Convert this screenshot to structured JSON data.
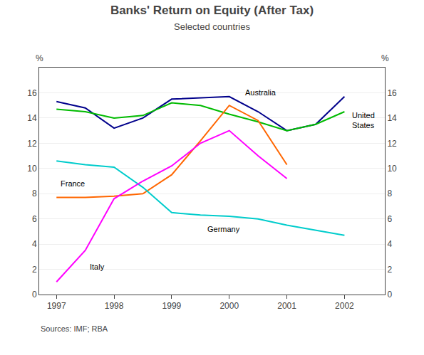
{
  "chart_data": {
    "type": "line",
    "title": "Banks' Return on Equity (After Tax)",
    "subtitle": "Selected countries",
    "source": "Sources: IMF; RBA",
    "ylabel": "%",
    "y2label": "%",
    "xlim": [
      1996.7,
      2002.7
    ],
    "xticks": [
      1997,
      1998,
      1999,
      2000,
      2001,
      2002
    ],
    "ylim": [
      0,
      18
    ],
    "yticks": [
      0,
      2,
      4,
      6,
      8,
      10,
      12,
      14,
      16
    ],
    "y2lim": [
      0,
      18
    ],
    "y2ticks": [
      0,
      2,
      4,
      6,
      8,
      10,
      12,
      14,
      16
    ],
    "grid": "y",
    "series": [
      {
        "name": "Australia",
        "color": "#00008B",
        "x": [
          1997,
          1997.5,
          1998,
          1998.5,
          1999,
          1999.5,
          2000,
          2000.5,
          2001,
          2001.5,
          2002
        ],
        "values": [
          15.3,
          14.8,
          13.2,
          14.0,
          15.5,
          15.6,
          15.7,
          14.5,
          13.0,
          13.5,
          15.7
        ]
      },
      {
        "name": "United States",
        "color": "#00BB00",
        "x": [
          1997,
          1997.5,
          1998,
          1998.5,
          1999,
          1999.5,
          2000,
          2000.5,
          2001,
          2001.5,
          2002
        ],
        "values": [
          14.7,
          14.5,
          14.0,
          14.2,
          15.2,
          15.0,
          14.3,
          13.7,
          13.0,
          13.5,
          14.5
        ]
      },
      {
        "name": "France",
        "color": "#FF6600",
        "x": [
          1997,
          1997.5,
          1998,
          1998.5,
          1999,
          1999.5,
          2000,
          2000.5,
          2001
        ],
        "values": [
          7.7,
          7.7,
          7.8,
          8.0,
          9.5,
          12.2,
          15.0,
          13.8,
          10.3
        ]
      },
      {
        "name": "Germany",
        "color": "#00CCCC",
        "x": [
          1997,
          1997.5,
          1998,
          1998.5,
          1999,
          1999.5,
          2000,
          2000.5,
          2001,
          2002
        ],
        "values": [
          10.6,
          10.3,
          10.1,
          8.5,
          6.5,
          6.3,
          6.2,
          6.0,
          5.5,
          4.7
        ]
      },
      {
        "name": "Italy",
        "color": "#FF00FF",
        "x": [
          1997,
          1997.5,
          1998,
          1998.5,
          1999,
          1999.5,
          2000,
          2000.5,
          2001
        ],
        "values": [
          1.0,
          3.5,
          7.6,
          9.0,
          10.2,
          12.0,
          13.0,
          11.0,
          9.2
        ]
      }
    ],
    "annotations": [
      {
        "text": "Australia",
        "x": 2000.25,
        "y": 16.0
      },
      {
        "text": "United\nStates",
        "x": 2002.1,
        "y": 13.8
      },
      {
        "text": "France",
        "x": 1997.05,
        "y": 8.8
      },
      {
        "text": "Germany",
        "x": 1999.6,
        "y": 5.2
      },
      {
        "text": "Italy",
        "x": 1997.55,
        "y": 2.2
      }
    ]
  }
}
